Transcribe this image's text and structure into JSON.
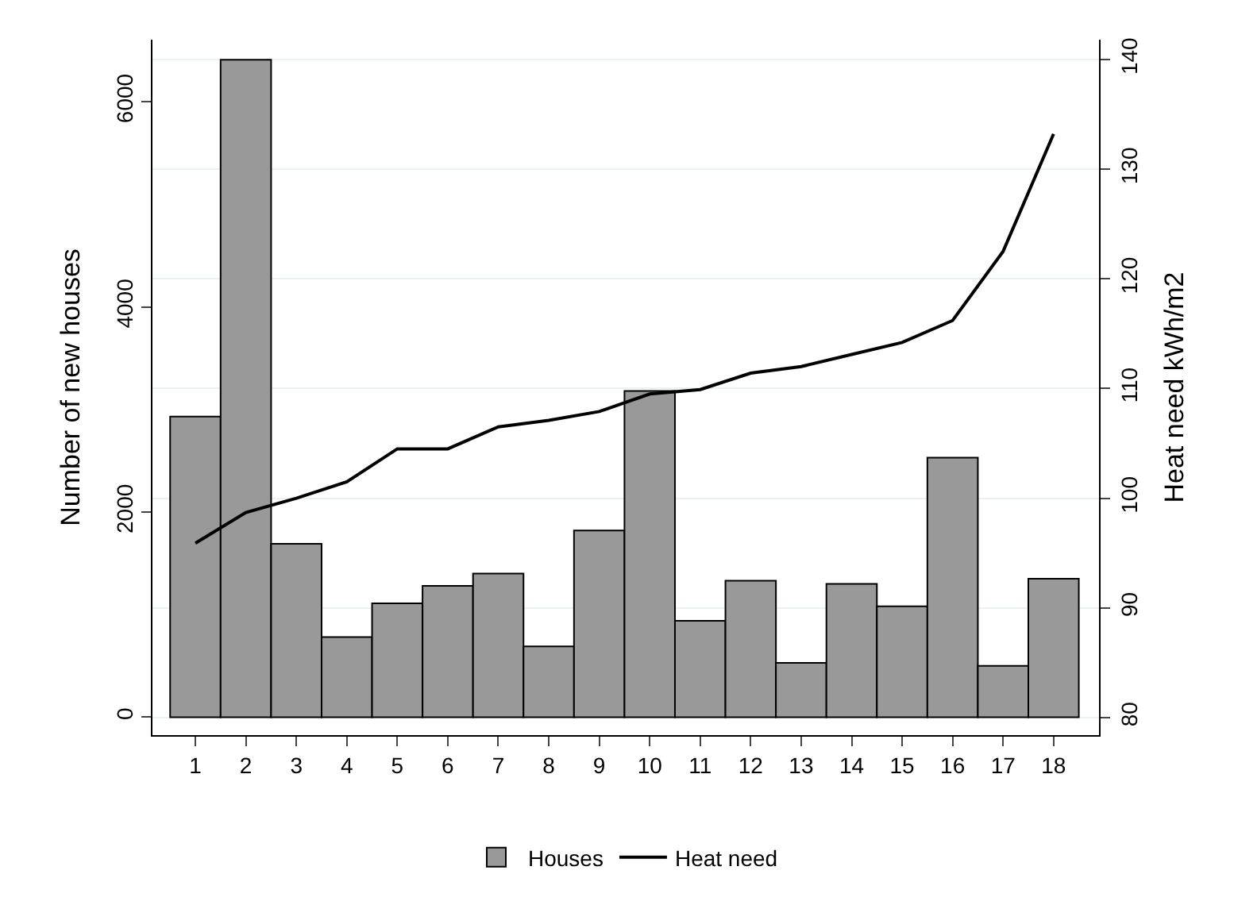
{
  "chart_data": {
    "type": "bar",
    "ylabel": "Number of new houses",
    "y2label": "Heat need kWh/m2",
    "x": [
      1,
      2,
      3,
      4,
      5,
      6,
      7,
      8,
      9,
      10,
      11,
      12,
      13,
      14,
      15,
      16,
      17,
      18
    ],
    "xlim": [
      0.15,
      18.9
    ],
    "xticks": [
      1,
      2,
      3,
      4,
      5,
      6,
      7,
      8,
      9,
      10,
      11,
      12,
      13,
      14,
      15,
      16,
      17,
      18
    ],
    "ylim": [
      -175,
      6605
    ],
    "yticks": [
      0,
      2000,
      4000,
      6000
    ],
    "y2lim": [
      78.4,
      141.8
    ],
    "y2ticks": [
      80,
      90,
      100,
      110,
      120,
      130,
      140
    ],
    "grid": "y",
    "legend": "bottom",
    "series": [
      {
        "name": "Houses",
        "color": "#999999",
        "values": [
          2930,
          6410,
          1690,
          780,
          1110,
          1280,
          1400,
          690,
          1820,
          3180,
          940,
          1330,
          530,
          1300,
          1080,
          2530,
          500,
          1350
        ]
      },
      {
        "name": "Heat need",
        "type": "line",
        "axis": "y2",
        "color": "#000000",
        "line_style": "solid",
        "values": [
          95.9,
          98.7,
          100.0,
          101.5,
          104.5,
          104.5,
          106.5,
          107.1,
          107.9,
          109.5,
          109.9,
          111.4,
          112.0,
          113.1,
          114.2,
          116.2,
          122.5,
          133.2
        ]
      }
    ]
  }
}
